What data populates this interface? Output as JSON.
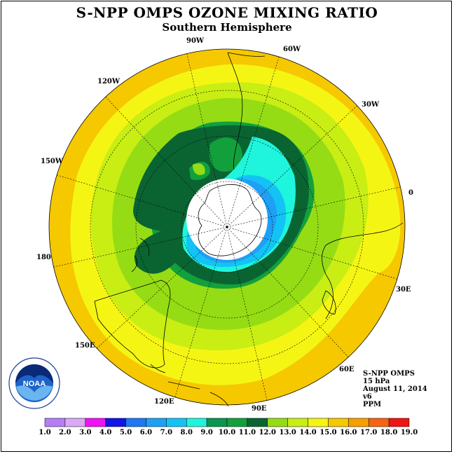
{
  "header": {
    "title": "S-NPP OMPS OZONE MIXING RATIO",
    "subtitle": "Southern Hemisphere"
  },
  "map": {
    "projection": "polar-stereographic-south",
    "longitude_labels": [
      "90W",
      "60W",
      "30W",
      "0",
      "30E",
      "60E",
      "90E",
      "120E",
      "150E",
      "180",
      "150W",
      "120W"
    ],
    "no_data_color": "#ffffff"
  },
  "info": {
    "line1": "S-NPP OMPS",
    "line2": "15 hPa",
    "line3": "August 11, 2014",
    "line4": "v6",
    "line5": "PPM"
  },
  "logo": {
    "text": "NOAA",
    "ring_text": "NATIONAL OCEANIC AND ATMOSPHERIC ADMINISTRATION · U.S. DEPARTMENT OF COMMERCE"
  },
  "colorbar": {
    "labels": [
      "1.0",
      "2.0",
      "3.0",
      "4.0",
      "5.0",
      "6.0",
      "7.0",
      "8.0",
      "9.0",
      "10.0",
      "11.0",
      "12.0",
      "13.0",
      "14.0",
      "15.0",
      "16.0",
      "17.0",
      "18.0",
      "19.0"
    ],
    "colors": [
      "#b57ef5",
      "#d9a9f5",
      "#f012f0",
      "#1414e6",
      "#1e78f0",
      "#1ea0f5",
      "#14c3f5",
      "#1ef5dc",
      "#0a9650",
      "#12a03c",
      "#0a6432",
      "#96dc14",
      "#c8ee14",
      "#f5f514",
      "#f5c800",
      "#f5a000",
      "#f56414",
      "#f01414",
      "#96643c"
    ]
  }
}
